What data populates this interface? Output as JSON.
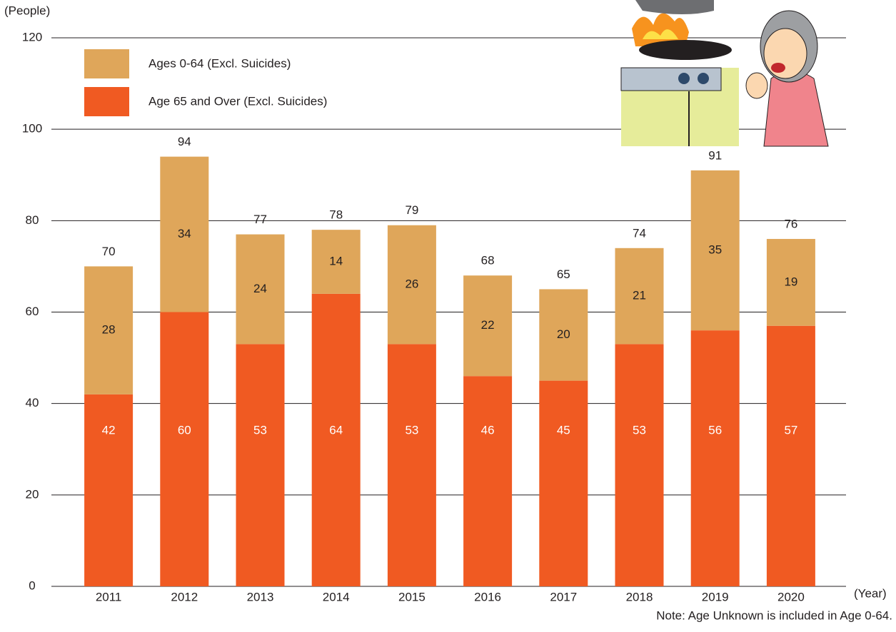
{
  "chart_data": {
    "type": "stacked_bar",
    "y_axis_label": "(People)",
    "x_axis_label": "(Year)",
    "note": "Note: Age Unknown is included in Age 0-64.",
    "categories": [
      "2011",
      "2012",
      "2013",
      "2014",
      "2015",
      "2016",
      "2017",
      "2018",
      "2019",
      "2020"
    ],
    "series": [
      {
        "name": "Age 65 and Over (Excl. Suicides)",
        "color": "#f05a22",
        "values": [
          42,
          60,
          53,
          64,
          53,
          46,
          45,
          53,
          56,
          57
        ]
      },
      {
        "name": "Ages 0-64 (Excl. Suicides)",
        "color": "#dfa65a",
        "values": [
          28,
          34,
          24,
          14,
          26,
          22,
          20,
          21,
          35,
          19
        ]
      }
    ],
    "totals": [
      70,
      94,
      77,
      78,
      79,
      68,
      65,
      74,
      91,
      76
    ],
    "ylim": [
      0,
      120
    ],
    "yticks": [
      0,
      20,
      40,
      60,
      80,
      100,
      120
    ],
    "grid": true
  }
}
